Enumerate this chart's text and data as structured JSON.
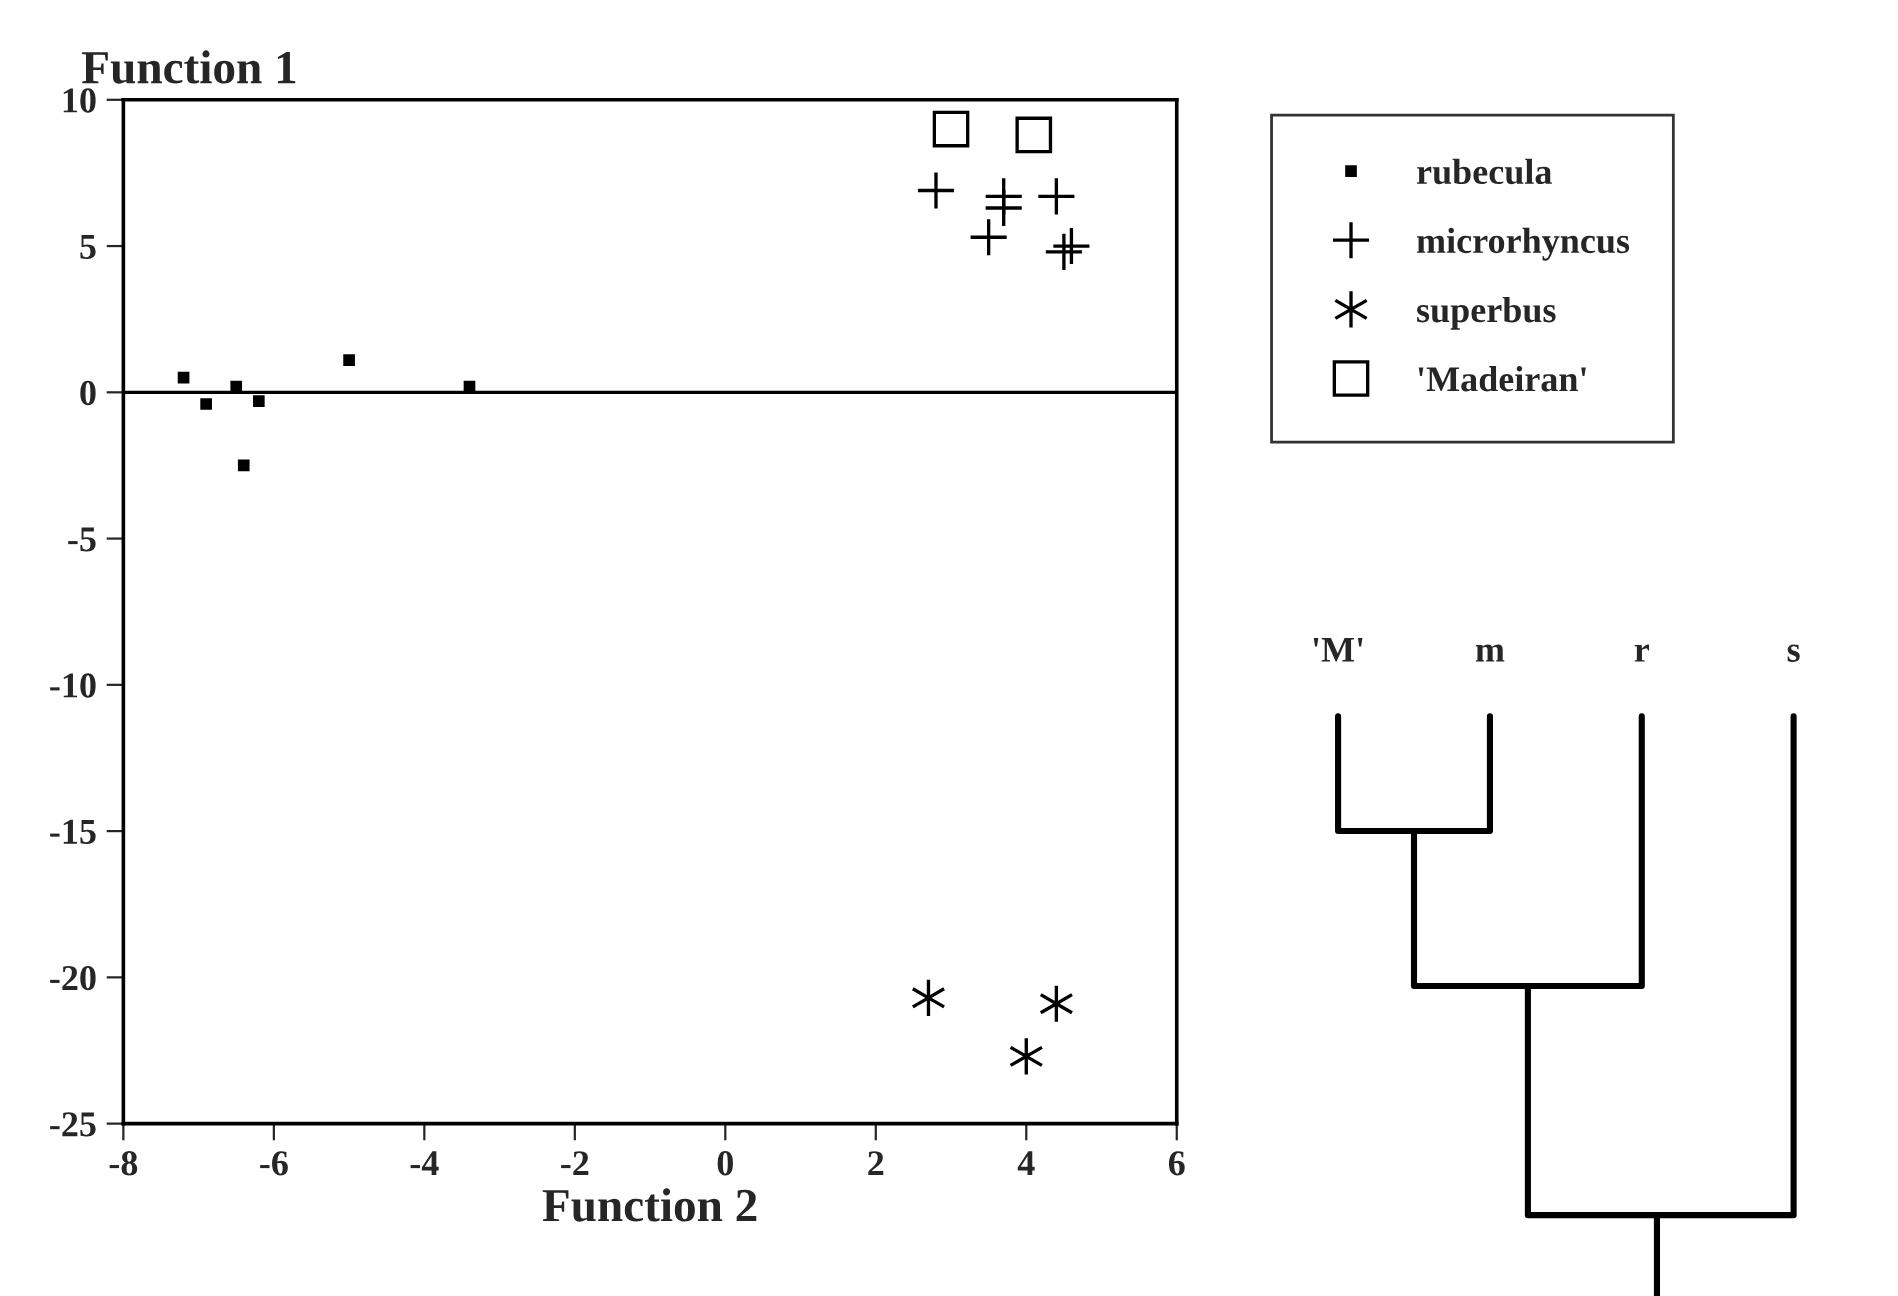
{
  "chart_data": [
    {
      "type": "scatter",
      "xlabel": "Function 2",
      "ylabel": "Function 1",
      "series": [
        {
          "name": "rubecula",
          "color": "#000000",
          "marker": "square",
          "x": [
            -7.2,
            -6.9,
            -6.5,
            -6.2,
            -6.4,
            -5.0,
            -3.4
          ],
          "values": [
            0.5,
            -0.4,
            0.2,
            -0.3,
            -2.5,
            1.1,
            0.2
          ]
        },
        {
          "name": "microrhyncus",
          "color": "#000000",
          "marker": "cross",
          "x": [
            2.8,
            3.7,
            3.7,
            3.5,
            4.4,
            4.5,
            4.6
          ],
          "values": [
            6.9,
            6.7,
            6.3,
            5.3,
            6.7,
            4.8,
            5.0
          ]
        },
        {
          "name": "superbus",
          "color": "#000000",
          "marker": "cross",
          "x": [
            2.7,
            4.4,
            4.0
          ],
          "values": [
            -20.7,
            -20.9,
            -22.7
          ]
        },
        {
          "name": "'Madeiran'",
          "color": "#000000",
          "marker": "square",
          "x": [
            3.0,
            4.1
          ],
          "values": [
            9.0,
            8.8
          ]
        }
      ],
      "xlim": [
        -8,
        6
      ],
      "ylim": [
        -25,
        10
      ],
      "xticks": [
        -8,
        -6,
        -4,
        -2,
        0,
        2,
        4,
        6
      ],
      "yticks": [
        -25,
        -20,
        -15,
        -10,
        -5,
        0,
        5,
        10
      ],
      "ref_lines": [
        {
          "axis": "y",
          "value": 0,
          "color": "#000000"
        }
      ],
      "grid": false,
      "legend": "top right"
    },
    {
      "type": "other",
      "annotations": [
        "'M'",
        "m",
        "r",
        "s"
      ]
    }
  ]
}
